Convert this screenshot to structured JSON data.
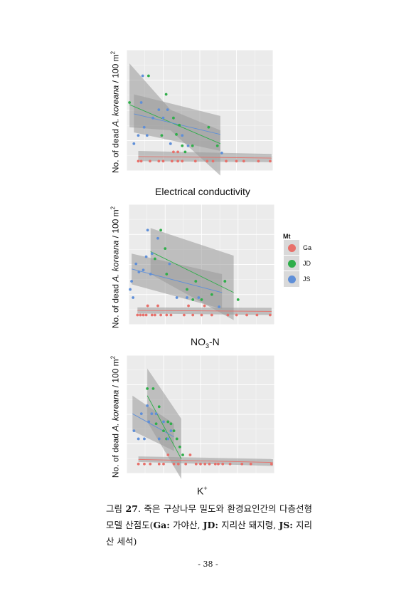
{
  "figure": {
    "panels": [
      {
        "id": "ec",
        "ylabel_prefix": "No. of dead ",
        "ylabel_species": "A. koreana",
        "ylabel_suffix": " / 100 m",
        "ylabel_sup": "2",
        "xlabel": "Electrical conductivity"
      },
      {
        "id": "no3",
        "ylabel_prefix": "No. of dead ",
        "ylabel_species": "A. koreana",
        "ylabel_suffix": " / 100 m",
        "ylabel_sup": "2",
        "xlabel_main": "NO",
        "xlabel_sub": "3",
        "xlabel_tail": "-N"
      },
      {
        "id": "k",
        "ylabel_prefix": "No. of dead ",
        "ylabel_species": "A. koreana",
        "ylabel_suffix": " / 100 m",
        "ylabel_sup": "2",
        "xlabel_main": "K",
        "xlabel_sup": "+"
      }
    ],
    "legend": {
      "title": "Mt",
      "items": [
        {
          "label": "Ga",
          "color": "#e8706a"
        },
        {
          "label": "JD",
          "color": "#2fae4a"
        },
        {
          "label": "JS",
          "color": "#5f8fd8"
        }
      ]
    }
  },
  "caption": {
    "label": "그림 ",
    "number": "27",
    "text": ". 죽은 구상나무 밀도와 환경요인간의 다층선형모델 산점도(",
    "bold1": "Ga:",
    "t1": " 가야산, ",
    "bold2": "JD:",
    "t2": " 지리산 돼지령, ",
    "bold3": "JS:",
    "t3": " 지리산 세석)"
  },
  "page_number": "- 38 -",
  "chart_data": [
    {
      "type": "scatter",
      "title": "",
      "xlabel": "Electrical conductivity",
      "ylabel": "No. of dead A. koreana / 100 m2",
      "xlim": [
        0,
        1
      ],
      "ylim": [
        0,
        1
      ],
      "series": [
        {
          "name": "Ga",
          "points": [
            [
              0.08,
              0.0
            ],
            [
              0.1,
              0.0
            ],
            [
              0.16,
              0.0
            ],
            [
              0.22,
              0.0
            ],
            [
              0.25,
              0.0
            ],
            [
              0.31,
              0.0
            ],
            [
              0.35,
              0.0
            ],
            [
              0.38,
              0.0
            ],
            [
              0.47,
              0.0
            ],
            [
              0.55,
              0.0
            ],
            [
              0.59,
              0.0
            ],
            [
              0.68,
              0.0
            ],
            [
              0.75,
              0.0
            ],
            [
              0.8,
              0.0
            ],
            [
              0.9,
              0.0
            ],
            [
              0.98,
              0.0
            ],
            [
              0.32,
              0.09
            ],
            [
              0.35,
              0.09
            ]
          ],
          "fit": [
            [
              0.08,
              0.045
            ],
            [
              0.99,
              0.03
            ]
          ],
          "band": [
            [
              0.08,
              0.1,
              0.0
            ],
            [
              0.99,
              0.07,
              -0.01
            ]
          ]
        },
        {
          "name": "JD",
          "points": [
            [
              0.02,
              0.57
            ],
            [
              0.15,
              0.83
            ],
            [
              0.27,
              0.65
            ],
            [
              0.32,
              0.42
            ],
            [
              0.34,
              0.26
            ],
            [
              0.38,
              0.15
            ],
            [
              0.4,
              0.09
            ],
            [
              0.45,
              0.15
            ],
            [
              0.56,
              0.33
            ],
            [
              0.62,
              0.15
            ],
            [
              0.24,
              0.25
            ],
            [
              0.36,
              0.35
            ]
          ],
          "fit": [
            [
              0.02,
              0.55
            ],
            [
              0.64,
              0.17
            ]
          ],
          "band": [
            [
              0.02,
              0.95,
              0.33
            ],
            [
              0.3,
              0.5,
              0.3
            ],
            [
              0.64,
              0.3,
              -0.14
            ]
          ]
        },
        {
          "name": "JS",
          "points": [
            [
              0.05,
              0.17
            ],
            [
              0.08,
              0.25
            ],
            [
              0.11,
              0.83
            ],
            [
              0.12,
              0.33
            ],
            [
              0.14,
              0.25
            ],
            [
              0.18,
              0.42
            ],
            [
              0.22,
              0.5
            ],
            [
              0.25,
              0.42
            ],
            [
              0.28,
              0.5
            ],
            [
              0.3,
              0.17
            ],
            [
              0.38,
              0.25
            ],
            [
              0.42,
              0.15
            ],
            [
              0.65,
              0.08
            ],
            [
              0.1,
              0.57
            ]
          ],
          "fit": [
            [
              0.05,
              0.46
            ],
            [
              0.64,
              0.26
            ]
          ],
          "band": [
            [
              0.05,
              0.65,
              0.28
            ],
            [
              0.64,
              0.44,
              0.1
            ]
          ]
        }
      ]
    },
    {
      "type": "scatter",
      "title": "",
      "xlabel": "NO3-N",
      "ylabel": "No. of dead A. koreana / 100 m2",
      "xlim": [
        0,
        1
      ],
      "ylim": [
        0,
        1
      ],
      "series": [
        {
          "name": "Ga",
          "points": [
            [
              0.06,
              0.0
            ],
            [
              0.08,
              0.0
            ],
            [
              0.1,
              0.0
            ],
            [
              0.12,
              0.0
            ],
            [
              0.13,
              0.09
            ],
            [
              0.16,
              0.0
            ],
            [
              0.18,
              0.0
            ],
            [
              0.2,
              0.09
            ],
            [
              0.22,
              0.0
            ],
            [
              0.26,
              0.0
            ],
            [
              0.29,
              0.0
            ],
            [
              0.38,
              0.0
            ],
            [
              0.44,
              0.0
            ],
            [
              0.5,
              0.0
            ],
            [
              0.52,
              0.09
            ],
            [
              0.57,
              0.0
            ],
            [
              0.68,
              0.0
            ],
            [
              0.74,
              0.0
            ],
            [
              0.81,
              0.0
            ],
            [
              0.88,
              0.0
            ],
            [
              0.97,
              0.0
            ],
            [
              0.41,
              0.09
            ]
          ],
          "fit": [
            [
              0.06,
              0.045
            ],
            [
              0.98,
              0.035
            ]
          ],
          "band": [
            [
              0.06,
              0.075,
              0.015
            ],
            [
              0.98,
              0.07,
              0.0
            ]
          ]
        },
        {
          "name": "JD",
          "points": [
            [
              0.18,
              0.55
            ],
            [
              0.22,
              0.83
            ],
            [
              0.25,
              0.65
            ],
            [
              0.4,
              0.25
            ],
            [
              0.44,
              0.15
            ],
            [
              0.46,
              0.33
            ],
            [
              0.5,
              0.15
            ],
            [
              0.57,
              0.2
            ],
            [
              0.66,
              0.33
            ],
            [
              0.75,
              0.15
            ],
            [
              0.26,
              0.4
            ]
          ],
          "fit": [
            [
              0.15,
              0.62
            ],
            [
              0.72,
              0.22
            ]
          ],
          "band": [
            [
              0.15,
              0.85,
              0.4
            ],
            [
              0.72,
              0.58,
              -0.05
            ]
          ]
        },
        {
          "name": "JS",
          "points": [
            [
              0.01,
              0.25
            ],
            [
              0.02,
              0.33
            ],
            [
              0.03,
              0.17
            ],
            [
              0.05,
              0.5
            ],
            [
              0.07,
              0.42
            ],
            [
              0.1,
              0.44
            ],
            [
              0.12,
              0.57
            ],
            [
              0.13,
              0.83
            ],
            [
              0.16,
              0.6
            ],
            [
              0.2,
              0.75
            ],
            [
              0.28,
              0.5
            ],
            [
              0.33,
              0.17
            ],
            [
              0.4,
              0.17
            ],
            [
              0.48,
              0.17
            ],
            [
              0.62,
              0.08
            ],
            [
              0.15,
              0.4
            ]
          ],
          "fit": [
            [
              0.02,
              0.45
            ],
            [
              0.64,
              0.22
            ]
          ],
          "band": [
            [
              0.02,
              0.6,
              0.3
            ],
            [
              0.64,
              0.4,
              0.06
            ]
          ]
        }
      ]
    },
    {
      "type": "scatter",
      "title": "",
      "xlabel": "K+",
      "ylabel": "No. of dead A. koreana / 100 m2",
      "xlim": [
        0,
        1
      ],
      "ylim": [
        0,
        1
      ],
      "series": [
        {
          "name": "Ga",
          "points": [
            [
              0.08,
              0.0
            ],
            [
              0.12,
              0.0
            ],
            [
              0.16,
              0.0
            ],
            [
              0.22,
              0.0
            ],
            [
              0.25,
              0.0
            ],
            [
              0.28,
              0.09
            ],
            [
              0.32,
              0.0
            ],
            [
              0.35,
              0.0
            ],
            [
              0.4,
              0.0
            ],
            [
              0.43,
              0.09
            ],
            [
              0.47,
              0.0
            ],
            [
              0.5,
              0.0
            ],
            [
              0.53,
              0.0
            ],
            [
              0.56,
              0.0
            ],
            [
              0.6,
              0.0
            ],
            [
              0.62,
              0.0
            ],
            [
              0.65,
              0.0
            ],
            [
              0.7,
              0.0
            ],
            [
              0.78,
              0.0
            ],
            [
              0.84,
              0.0
            ],
            [
              0.98,
              0.0
            ]
          ],
          "fit": [
            [
              0.08,
              0.045
            ],
            [
              0.99,
              0.015
            ]
          ],
          "band": [
            [
              0.08,
              0.075,
              0.02
            ],
            [
              0.99,
              0.05,
              -0.02
            ]
          ]
        },
        {
          "name": "JD",
          "points": [
            [
              0.14,
              0.75
            ],
            [
              0.18,
              0.75
            ],
            [
              0.22,
              0.57
            ],
            [
              0.25,
              0.33
            ],
            [
              0.27,
              0.25
            ],
            [
              0.28,
              0.42
            ],
            [
              0.3,
              0.4
            ],
            [
              0.32,
              0.33
            ],
            [
              0.34,
              0.25
            ],
            [
              0.36,
              0.17
            ],
            [
              0.38,
              0.09
            ],
            [
              0.2,
              0.4
            ]
          ],
          "fit": [
            [
              0.14,
              0.68
            ],
            [
              0.37,
              0.05
            ]
          ],
          "band": [
            [
              0.14,
              0.95,
              0.42
            ],
            [
              0.37,
              0.45,
              -0.15
            ]
          ]
        },
        {
          "name": "JS",
          "points": [
            [
              0.05,
              0.33
            ],
            [
              0.08,
              0.25
            ],
            [
              0.1,
              0.5
            ],
            [
              0.12,
              0.25
            ],
            [
              0.15,
              0.42
            ],
            [
              0.17,
              0.5
            ],
            [
              0.2,
              0.5
            ],
            [
              0.22,
              0.25
            ],
            [
              0.25,
              0.42
            ],
            [
              0.28,
              0.25
            ],
            [
              0.3,
              0.33
            ],
            [
              0.14,
              0.58
            ]
          ],
          "fit": [
            [
              0.04,
              0.5
            ],
            [
              0.32,
              0.27
            ]
          ],
          "band": [
            [
              0.04,
              0.68,
              0.33
            ],
            [
              0.32,
              0.4,
              0.13
            ]
          ]
        }
      ]
    }
  ]
}
